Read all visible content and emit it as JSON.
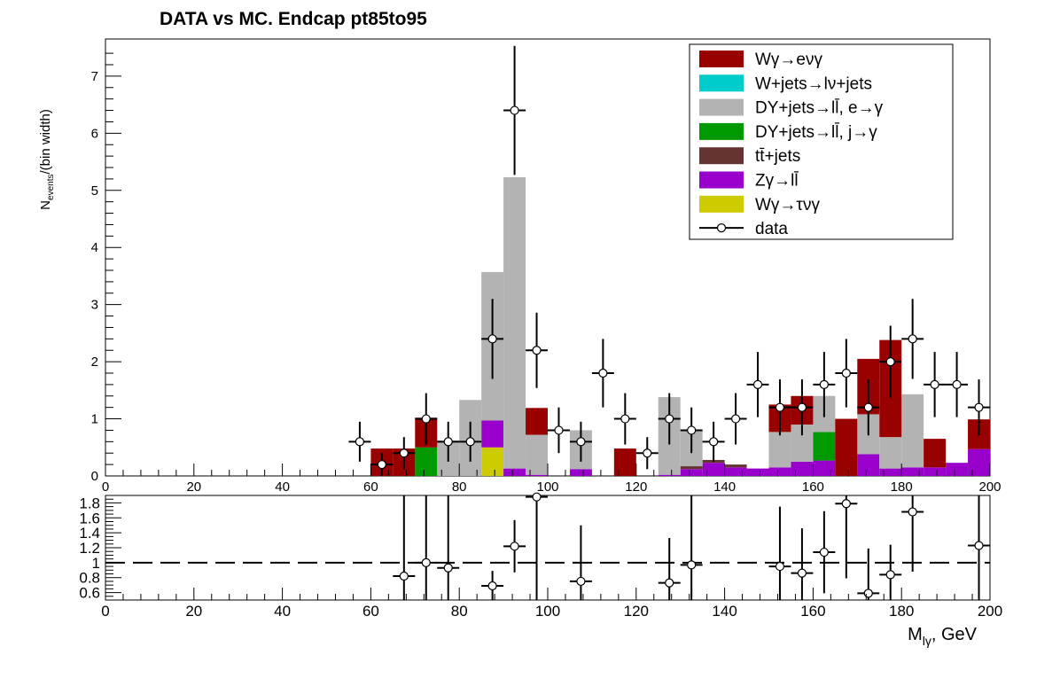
{
  "chart_data": {
    "type": "bar",
    "title": "DATA vs MC. Endcap  pt85to95",
    "xlabel_main": "M",
    "xlabel_sub": "lγ",
    "xlabel_tail": ", GeV",
    "ylabel_main": "N",
    "ylabel_sub": "events",
    "ylabel_tail": "/(bin width)",
    "xlim": [
      0,
      200
    ],
    "ylim": [
      0,
      7.65
    ],
    "ratio_ylim": [
      0.5,
      1.9
    ],
    "x_ticks": [
      "0",
      "20",
      "40",
      "60",
      "80",
      "100",
      "120",
      "140",
      "160",
      "180",
      "200"
    ],
    "y_ticks": [
      "0",
      "1",
      "2",
      "3",
      "4",
      "5",
      "6",
      "7"
    ],
    "ratio_ticks": [
      "0.6",
      "0.8",
      "1",
      "1.2",
      "1.4",
      "1.6",
      "1.8"
    ],
    "grid": false,
    "legend_position": "top-right",
    "bin_centers": [
      62.5,
      67.5,
      72.5,
      77.5,
      82.5,
      87.5,
      92.5,
      97.5,
      102.5,
      107.5,
      112.5,
      117.5,
      122.5,
      127.5,
      132.5,
      137.5,
      142.5,
      147.5,
      152.5,
      157.5,
      162.5,
      167.5,
      172.5,
      177.5,
      182.5,
      187.5,
      192.5,
      197.5
    ],
    "bin_width": 5,
    "stack": [
      {
        "name": "Wγ→τνγ",
        "color": "#cccc00",
        "values": [
          0,
          0,
          0,
          0,
          0,
          0.5,
          0,
          0,
          0,
          0,
          0,
          0,
          0,
          0,
          0,
          0,
          0,
          0,
          0,
          0,
          0,
          0,
          0,
          0,
          0,
          0,
          0,
          0
        ]
      },
      {
        "name": "Zγ→ll̄",
        "color": "#9900cc",
        "values": [
          0,
          0,
          0,
          0,
          0,
          0.47,
          0.13,
          0.02,
          0,
          0.12,
          0,
          0,
          0,
          0.02,
          0.12,
          0.23,
          0.15,
          0.13,
          0.15,
          0.25,
          0.27,
          0,
          0.38,
          0.13,
          0.15,
          0.15,
          0.23,
          0.47
        ]
      },
      {
        "name": "tt̄+jets",
        "color": "#663333",
        "values": [
          0,
          0,
          0,
          0,
          0,
          0,
          0,
          0,
          0,
          0,
          0,
          0,
          0,
          0,
          0.05,
          0.05,
          0.05,
          0,
          0,
          0,
          0,
          0,
          0,
          0,
          0,
          0,
          0,
          0
        ]
      },
      {
        "name": "DY+jets→ll̄, j→γ",
        "color": "#009900",
        "values": [
          0,
          0,
          0.5,
          0,
          0,
          0,
          0,
          0,
          0,
          0,
          0,
          0,
          0,
          0,
          0,
          0,
          0,
          0,
          0,
          0,
          0.5,
          0,
          0,
          0,
          0,
          0,
          0,
          0
        ]
      },
      {
        "name": "DY+jets→ll̄, e→γ",
        "color": "#b3b3b3",
        "values": [
          0,
          0,
          0,
          0.62,
          1.33,
          2.6,
          5.1,
          0.7,
          0,
          0.68,
          0,
          0,
          0,
          1.36,
          0.63,
          0,
          0,
          0,
          0.62,
          0.65,
          0.63,
          0,
          0.7,
          0.55,
          1.28,
          0,
          0,
          0
        ]
      },
      {
        "name": "W+jets→lν+jets",
        "color": "#00cccc",
        "values": [
          0,
          0,
          0,
          0,
          0,
          0,
          0,
          0,
          0,
          0,
          0,
          0,
          0,
          0,
          0,
          0,
          0,
          0,
          0,
          0,
          0,
          0,
          0,
          0,
          0,
          0,
          0,
          0
        ]
      },
      {
        "name": "Wγ→eνγ",
        "color": "#990000",
        "values": [
          0.48,
          0.48,
          0.52,
          0,
          0,
          0,
          0,
          0.47,
          0,
          0,
          0,
          0.48,
          0,
          0,
          0,
          0,
          0,
          0,
          0.48,
          0.5,
          0,
          1.0,
          0.97,
          1.7,
          0,
          0.5,
          0,
          0.52
        ]
      }
    ],
    "data_series": {
      "name": "data",
      "x": [
        57.5,
        62.5,
        67.5,
        72.5,
        77.5,
        82.5,
        87.5,
        92.5,
        97.5,
        102.5,
        107.5,
        112.5,
        117.5,
        122.5,
        127.5,
        132.5,
        137.5,
        142.5,
        147.5,
        152.5,
        157.5,
        162.5,
        167.5,
        172.5,
        177.5,
        182.5,
        187.5,
        192.5,
        197.5
      ],
      "y": [
        0.6,
        0.2,
        0.4,
        1.0,
        0.6,
        0.6,
        2.4,
        6.4,
        2.2,
        0.8,
        0.6,
        1.8,
        1.0,
        0.4,
        1.0,
        0.8,
        0.6,
        1.0,
        1.6,
        1.2,
        1.2,
        1.6,
        1.8,
        1.2,
        2.0,
        2.4,
        1.6,
        1.6,
        1.2
      ],
      "err": [
        0.35,
        0.2,
        0.28,
        0.45,
        0.35,
        0.35,
        0.7,
        1.13,
        0.66,
        0.4,
        0.35,
        0.6,
        0.45,
        0.28,
        0.45,
        0.4,
        0.35,
        0.45,
        0.57,
        0.49,
        0.49,
        0.57,
        0.6,
        0.49,
        0.63,
        0.7,
        0.57,
        0.57,
        0.49
      ]
    },
    "ratio_series": {
      "x": [
        67.5,
        72.5,
        77.5,
        87.5,
        92.5,
        97.5,
        107.5,
        127.5,
        132.5,
        152.5,
        157.5,
        162.5,
        167.5,
        172.5,
        177.5,
        182.5,
        197.5
      ],
      "y": [
        0.82,
        1.0,
        0.93,
        0.69,
        1.22,
        1.88,
        0.75,
        0.73,
        0.97,
        0.95,
        0.86,
        1.14,
        1.79,
        0.59,
        0.84,
        1.68,
        1.23
      ],
      "err": [
        1.2,
        1.2,
        1.3,
        0.2,
        0.35,
        1.5,
        0.75,
        0.6,
        1.2,
        0.8,
        0.6,
        0.55,
        1.0,
        0.6,
        0.4,
        0.8,
        1.1
      ]
    },
    "reference_line": 1
  }
}
